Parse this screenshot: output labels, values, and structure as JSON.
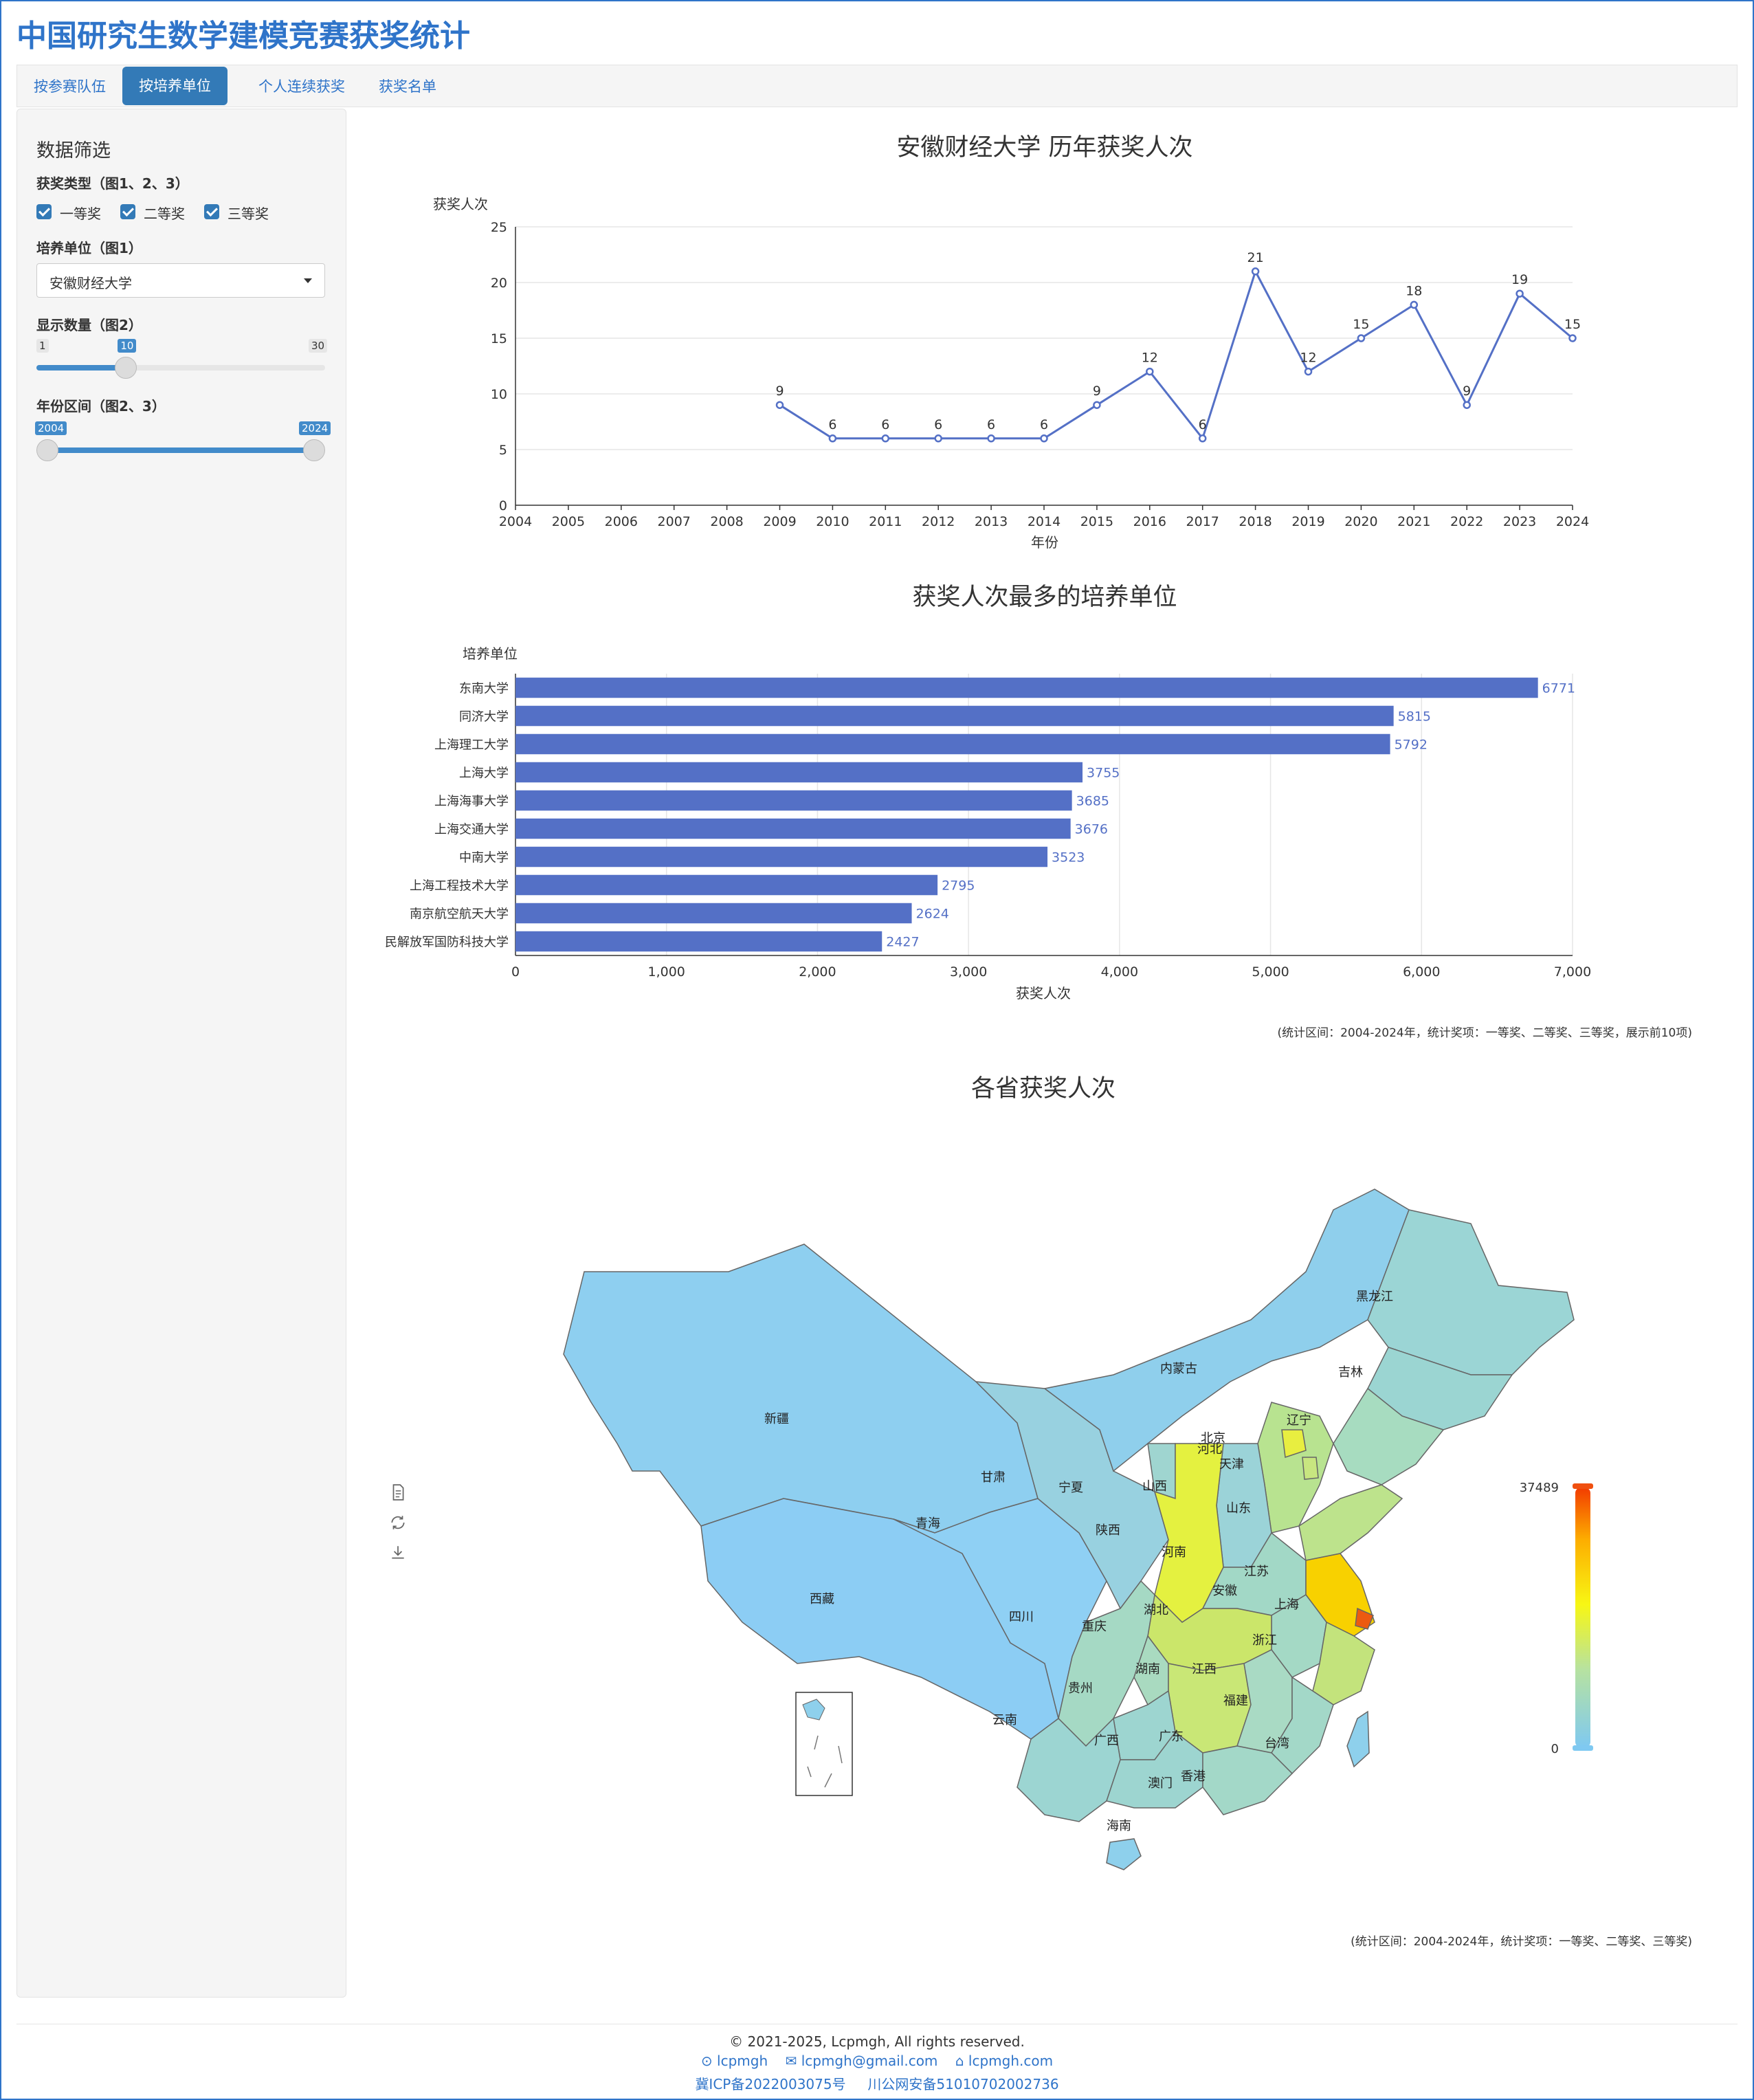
{
  "app": {
    "title": "中国研究生数学建模竞赛获奖统计"
  },
  "tabs": [
    "按参赛队伍",
    "按培养单位",
    "个人连续获奖",
    "获奖名单"
  ],
  "sidebar": {
    "title": "数据筛选",
    "award_type_label": "获奖类型（图1、2、3）",
    "award_types": [
      "一等奖",
      "二等奖",
      "三等奖"
    ],
    "unit_label": "培养单位（图1）",
    "unit_value": "安徽财经大学",
    "count_label": "显示数量（图2）",
    "count_slider": {
      "min": "1",
      "max": "30",
      "value": "10",
      "min_n": 1,
      "max_n": 30,
      "value_n": 10
    },
    "year_label": "年份区间（图2、3）",
    "year_slider": {
      "from": "2004",
      "to": "2024",
      "from_n": 2004,
      "to_n": 2024,
      "min_n": 2004,
      "max_n": 2024
    }
  },
  "chart_data": [
    {
      "type": "line",
      "title": "安徽财经大学 历年获奖人次",
      "xlabel": "年份",
      "ylabel": "获奖人次",
      "x": [
        2004,
        2005,
        2006,
        2007,
        2008,
        2009,
        2010,
        2011,
        2012,
        2013,
        2014,
        2015,
        2016,
        2017,
        2018,
        2019,
        2020,
        2021,
        2022,
        2023,
        2024
      ],
      "x_ticks": [
        "2004",
        "2005",
        "2006",
        "2007",
        "2008",
        "2009",
        "2010",
        "2011",
        "2012",
        "2013",
        "2014",
        "2015",
        "2016",
        "2017",
        "2018",
        "2019",
        "2020",
        "2021",
        "2022",
        "2023",
        "2024"
      ],
      "points": [
        {
          "x": 2009,
          "y": 9,
          "label": "9"
        },
        {
          "x": 2010,
          "y": 6,
          "label": "6"
        },
        {
          "x": 2011,
          "y": 6,
          "label": "6"
        },
        {
          "x": 2012,
          "y": 6,
          "label": "6"
        },
        {
          "x": 2013,
          "y": 6,
          "label": "6"
        },
        {
          "x": 2014,
          "y": 6,
          "label": "6"
        },
        {
          "x": 2015,
          "y": 9,
          "label": "9"
        },
        {
          "x": 2016,
          "y": 12,
          "label": "12"
        },
        {
          "x": 2017,
          "y": 6,
          "label": "6"
        },
        {
          "x": 2018,
          "y": 21,
          "label": "21"
        },
        {
          "x": 2019,
          "y": 12,
          "label": "12"
        },
        {
          "x": 2020,
          "y": 15,
          "label": "15"
        },
        {
          "x": 2021,
          "y": 18,
          "label": "18"
        },
        {
          "x": 2022,
          "y": 9,
          "label": "9"
        },
        {
          "x": 2023,
          "y": 19,
          "label": "19"
        },
        {
          "x": 2024,
          "y": 15,
          "label": "15"
        }
      ],
      "ylim": [
        0,
        25
      ],
      "y_ticks": [
        0,
        5,
        10,
        15,
        20,
        25
      ],
      "grid": true,
      "color": "#5470c6"
    },
    {
      "type": "bar",
      "orientation": "horizontal",
      "title": "获奖人次最多的培养单位",
      "ylabel": "培养单位",
      "xlabel": "获奖人次",
      "categories": [
        "东南大学",
        "同济大学",
        "上海理工大学",
        "上海大学",
        "上海海事大学",
        "上海交通大学",
        "中南大学",
        "上海工程技术大学",
        "南京航空航天大学",
        "民解放军国防科技大学"
      ],
      "values": [
        6771,
        5815,
        5792,
        3755,
        3685,
        3676,
        3523,
        2795,
        2624,
        2427
      ],
      "value_labels": [
        "6771",
        "5815",
        "5792",
        "3755",
        "3685",
        "3676",
        "3523",
        "2795",
        "2624",
        "2427"
      ],
      "xlim": [
        0,
        7000
      ],
      "x_ticks": [
        0,
        1000,
        2000,
        3000,
        4000,
        5000,
        6000,
        7000
      ],
      "x_tick_labels": [
        "0",
        "1,000",
        "2,000",
        "3,000",
        "4,000",
        "5,000",
        "6,000",
        "7,000"
      ],
      "note": "(统计区间：2004-2024年，统计奖项：一等奖、二等奖、三等奖，展示前10项)",
      "color": "#5470c6"
    },
    {
      "type": "map",
      "title": "各省获奖人次",
      "visual_map": {
        "max": "37489",
        "min": "0"
      },
      "provinces": [
        "黑龙江",
        "吉林",
        "辽宁",
        "内蒙古",
        "北京",
        "天津",
        "河北",
        "山西",
        "山东",
        "河南",
        "江苏",
        "上海",
        "安徽",
        "浙江",
        "湖北",
        "陕西",
        "宁夏",
        "甘肃",
        "青海",
        "新疆",
        "西藏",
        "四川",
        "重庆",
        "湖南",
        "江西",
        "福建",
        "贵州",
        "云南",
        "广西",
        "广东",
        "香港",
        "澳门",
        "海南",
        "台湾"
      ],
      "note": "(统计区间：2004-2024年，统计奖项：一等奖、二等奖、三等奖)"
    }
  ],
  "footer": {
    "copyright": "© 2021-2025, Lcpmgh, All rights reserved.",
    "github": "lcpmgh",
    "email": "lcpmgh@gmail.com",
    "site": "lcpmgh.com",
    "icp": "冀ICP备2022003075号",
    "police": "川公网安备51010702002736"
  },
  "colors": {
    "accent": "#2f74c9",
    "tab_active": "#337ab7",
    "series": "#5470c6"
  }
}
